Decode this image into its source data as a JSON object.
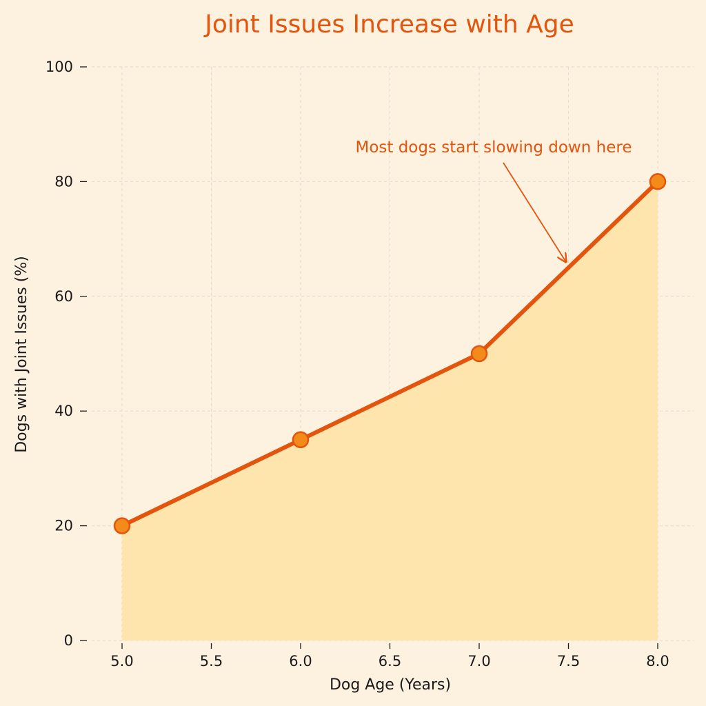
{
  "chart_data": {
    "type": "line",
    "title": "Joint Issues Increase with Age",
    "xlabel": "Dog Age (Years)",
    "ylabel": "Dogs with Joint Issues (%)",
    "x": [
      5.0,
      6.0,
      7.0,
      8.0
    ],
    "series": [
      {
        "values": [
          20,
          35,
          50,
          80
        ]
      }
    ],
    "xlim": [
      5.0,
      8.0
    ],
    "ylim": [
      0,
      100
    ],
    "x_ticks": [
      "5.0",
      "5.5",
      "6.0",
      "6.5",
      "7.0",
      "7.5",
      "8.0"
    ],
    "y_ticks": [
      "0",
      "20",
      "40",
      "60",
      "80",
      "100"
    ],
    "grid": true,
    "area_fill": true,
    "annotation": {
      "text": "Most dogs start slowing down here",
      "target_x": 7.5,
      "target_y": 65
    },
    "colors": {
      "background": "#fdf1e0",
      "line": "#e3540c",
      "marker_fill": "#f28b1a",
      "area": "#fee4ad",
      "title": "#e3540c",
      "grid": "#e4dccf"
    }
  }
}
